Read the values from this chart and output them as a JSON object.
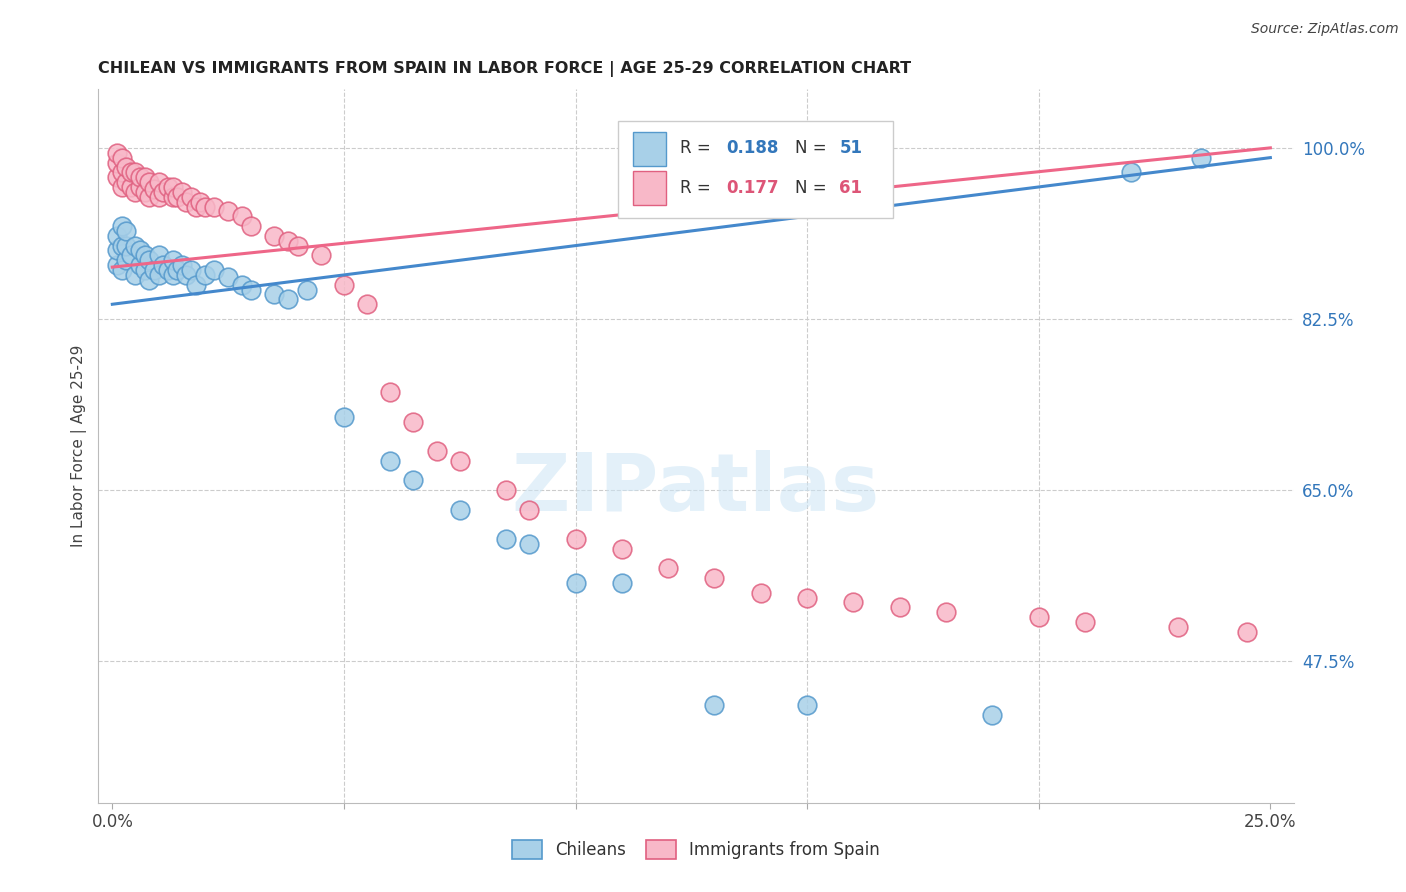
{
  "title": "CHILEAN VS IMMIGRANTS FROM SPAIN IN LABOR FORCE | AGE 25-29 CORRELATION CHART",
  "source": "Source: ZipAtlas.com",
  "ylabel": "In Labor Force | Age 25-29",
  "xlim": [
    -0.003,
    0.255
  ],
  "ylim": [
    0.33,
    1.06
  ],
  "xtick_positions": [
    0.0,
    0.05,
    0.1,
    0.15,
    0.2,
    0.25
  ],
  "xticklabels": [
    "0.0%",
    "",
    "",
    "",
    "",
    "25.0%"
  ],
  "ytick_right_vals": [
    1.0,
    0.825,
    0.65,
    0.475
  ],
  "ytick_right_labels": [
    "100.0%",
    "82.5%",
    "65.0%",
    "47.5%"
  ],
  "watermark_text": "ZIPatlas",
  "blue_face": "#a8d0e8",
  "blue_edge": "#5599cc",
  "pink_face": "#f8b8c8",
  "pink_edge": "#e06080",
  "blue_line": "#4488cc",
  "pink_line": "#ee6688",
  "blue_r_color": "#3377bb",
  "pink_r_color": "#dd5577",
  "chileans_label": "Chileans",
  "spain_label": "Immigrants from Spain",
  "blue_line_x0": 0.0,
  "blue_line_y0": 0.84,
  "blue_line_x1": 0.25,
  "blue_line_y1": 0.99,
  "pink_line_x0": 0.0,
  "pink_line_y0": 0.878,
  "pink_line_x1": 0.25,
  "pink_line_y1": 1.0,
  "chileans_x": [
    0.001,
    0.001,
    0.001,
    0.002,
    0.002,
    0.002,
    0.003,
    0.003,
    0.003,
    0.004,
    0.005,
    0.005,
    0.006,
    0.006,
    0.007,
    0.007,
    0.008,
    0.008,
    0.009,
    0.01,
    0.01,
    0.011,
    0.012,
    0.013,
    0.013,
    0.014,
    0.015,
    0.016,
    0.017,
    0.018,
    0.02,
    0.022,
    0.025,
    0.028,
    0.03,
    0.035,
    0.038,
    0.042,
    0.05,
    0.06,
    0.065,
    0.075,
    0.085,
    0.09,
    0.1,
    0.11,
    0.13,
    0.15,
    0.19,
    0.22,
    0.235
  ],
  "chileans_y": [
    0.88,
    0.895,
    0.91,
    0.875,
    0.9,
    0.92,
    0.885,
    0.9,
    0.915,
    0.89,
    0.87,
    0.9,
    0.88,
    0.895,
    0.875,
    0.89,
    0.865,
    0.885,
    0.875,
    0.87,
    0.89,
    0.88,
    0.875,
    0.87,
    0.885,
    0.875,
    0.88,
    0.87,
    0.875,
    0.86,
    0.87,
    0.875,
    0.868,
    0.86,
    0.855,
    0.85,
    0.845,
    0.855,
    0.725,
    0.68,
    0.66,
    0.63,
    0.6,
    0.595,
    0.555,
    0.555,
    0.43,
    0.43,
    0.42,
    0.975,
    0.99
  ],
  "spain_x": [
    0.001,
    0.001,
    0.001,
    0.002,
    0.002,
    0.002,
    0.003,
    0.003,
    0.004,
    0.004,
    0.005,
    0.005,
    0.006,
    0.006,
    0.007,
    0.007,
    0.008,
    0.008,
    0.009,
    0.01,
    0.01,
    0.011,
    0.012,
    0.013,
    0.013,
    0.014,
    0.015,
    0.016,
    0.017,
    0.018,
    0.019,
    0.02,
    0.022,
    0.025,
    0.028,
    0.03,
    0.035,
    0.038,
    0.04,
    0.045,
    0.05,
    0.055,
    0.06,
    0.065,
    0.07,
    0.075,
    0.085,
    0.09,
    0.1,
    0.11,
    0.12,
    0.13,
    0.14,
    0.15,
    0.16,
    0.17,
    0.18,
    0.2,
    0.21,
    0.23,
    0.245
  ],
  "spain_y": [
    0.97,
    0.985,
    0.995,
    0.96,
    0.975,
    0.99,
    0.965,
    0.98,
    0.96,
    0.975,
    0.955,
    0.975,
    0.96,
    0.97,
    0.955,
    0.97,
    0.95,
    0.965,
    0.958,
    0.95,
    0.965,
    0.955,
    0.96,
    0.95,
    0.96,
    0.95,
    0.955,
    0.945,
    0.95,
    0.94,
    0.945,
    0.94,
    0.94,
    0.935,
    0.93,
    0.92,
    0.91,
    0.905,
    0.9,
    0.89,
    0.86,
    0.84,
    0.75,
    0.72,
    0.69,
    0.68,
    0.65,
    0.63,
    0.6,
    0.59,
    0.57,
    0.56,
    0.545,
    0.54,
    0.535,
    0.53,
    0.525,
    0.52,
    0.515,
    0.51,
    0.505
  ]
}
